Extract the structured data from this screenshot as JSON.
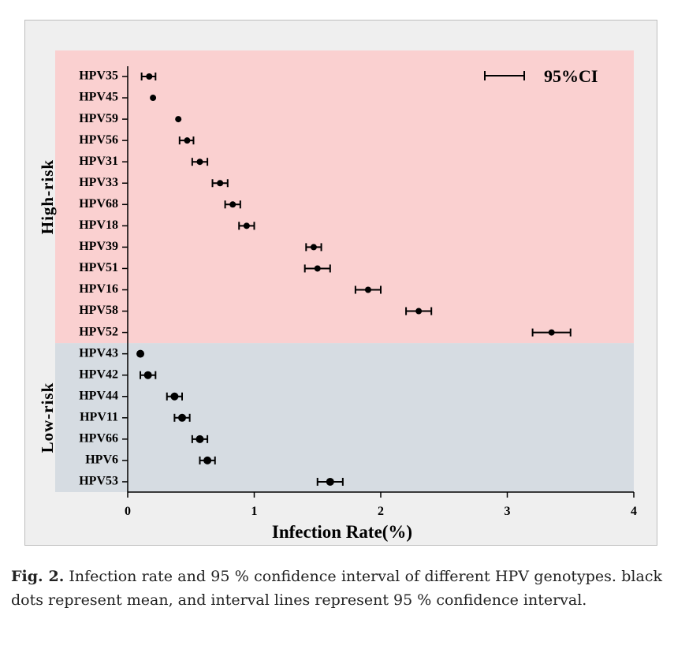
{
  "chart_data": {
    "type": "scatter",
    "subtype": "dot plot with 95% confidence interval error bars",
    "xlabel": "Infection Rate(%)",
    "xlim": [
      0,
      4
    ],
    "xticks": [
      "0",
      "1",
      "2",
      "3",
      "4"
    ],
    "legend": {
      "label": "95%CI",
      "position": "top-right"
    },
    "grid": false,
    "groups": [
      {
        "name": "High-risk",
        "color": "#fad0d0",
        "points": [
          {
            "label": "HPV35",
            "mean": 0.17,
            "low": 0.11,
            "high": 0.22
          },
          {
            "label": "HPV45",
            "mean": 0.2,
            "low": null,
            "high": null
          },
          {
            "label": "HPV59",
            "mean": 0.4,
            "low": null,
            "high": null
          },
          {
            "label": "HPV56",
            "mean": 0.47,
            "low": 0.41,
            "high": 0.52
          },
          {
            "label": "HPV31",
            "mean": 0.57,
            "low": 0.51,
            "high": 0.63
          },
          {
            "label": "HPV33",
            "mean": 0.73,
            "low": 0.67,
            "high": 0.79
          },
          {
            "label": "HPV68",
            "mean": 0.83,
            "low": 0.77,
            "high": 0.89
          },
          {
            "label": "HPV18",
            "mean": 0.94,
            "low": 0.88,
            "high": 1.0
          },
          {
            "label": "HPV39",
            "mean": 1.47,
            "low": 1.41,
            "high": 1.53
          },
          {
            "label": "HPV51",
            "mean": 1.5,
            "low": 1.4,
            "high": 1.6
          },
          {
            "label": "HPV16",
            "mean": 1.9,
            "low": 1.8,
            "high": 2.0
          },
          {
            "label": "HPV58",
            "mean": 2.3,
            "low": 2.2,
            "high": 2.4
          },
          {
            "label": "HPV52",
            "mean": 3.35,
            "low": 3.2,
            "high": 3.5
          }
        ]
      },
      {
        "name": "Low-risk",
        "color": "#d6dce2",
        "points": [
          {
            "label": "HPV43",
            "mean": 0.1,
            "low": null,
            "high": null
          },
          {
            "label": "HPV42",
            "mean": 0.16,
            "low": 0.1,
            "high": 0.22
          },
          {
            "label": "HPV44",
            "mean": 0.37,
            "low": 0.31,
            "high": 0.43
          },
          {
            "label": "HPV11",
            "mean": 0.43,
            "low": 0.37,
            "high": 0.49
          },
          {
            "label": "HPV66",
            "mean": 0.57,
            "low": 0.51,
            "high": 0.63
          },
          {
            "label": "HPV6",
            "mean": 0.63,
            "low": 0.57,
            "high": 0.69
          },
          {
            "label": "HPV53",
            "mean": 1.6,
            "low": 1.5,
            "high": 1.7
          }
        ]
      }
    ]
  },
  "caption": {
    "label": "Fig. 2.",
    "text": "Infection rate and 95 % confidence interval of different HPV genotypes. black dots represent mean, and interval lines represent 95 % confidence interval."
  }
}
